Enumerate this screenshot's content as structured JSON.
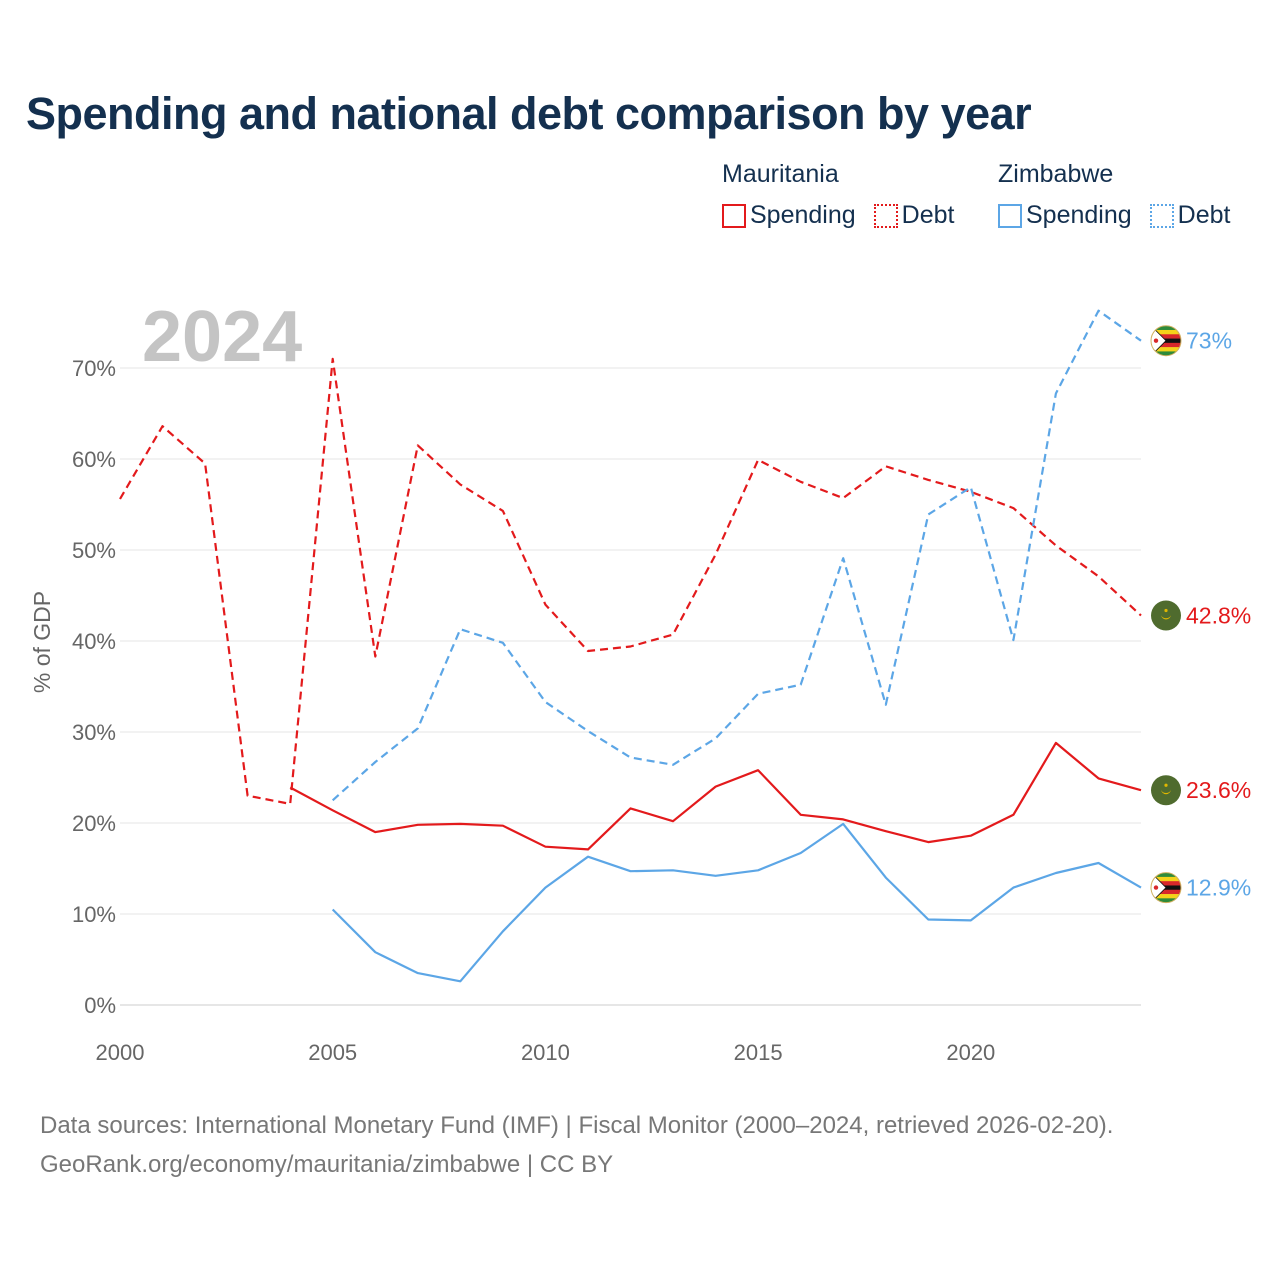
{
  "title": "Spending and national debt comparison by year",
  "legend": {
    "groups": [
      {
        "country": "Mauritania",
        "color": "#e31a1c",
        "items": [
          {
            "label": "Spending",
            "style": "solid"
          },
          {
            "label": "Debt",
            "style": "dotted"
          }
        ]
      },
      {
        "country": "Zimbabwe",
        "color": "#5ca6e6",
        "items": [
          {
            "label": "Spending",
            "style": "solid"
          },
          {
            "label": "Debt",
            "style": "dotted"
          }
        ]
      }
    ]
  },
  "chart_data": {
    "type": "line",
    "year_label": "2024",
    "ylabel": "% of GDP",
    "xlabel": "",
    "xlim": [
      2000,
      2024
    ],
    "ylim": [
      0,
      75
    ],
    "x_ticks": [
      2000,
      2005,
      2010,
      2015,
      2020
    ],
    "y_ticks": [
      0,
      10,
      20,
      30,
      40,
      50,
      60,
      70
    ],
    "y_tick_labels": [
      "0%",
      "10%",
      "20%",
      "30%",
      "40%",
      "50%",
      "60%",
      "70%"
    ],
    "grid": true,
    "series": [
      {
        "name": "Mauritania Debt",
        "country": "Mauritania",
        "kind": "debt",
        "color": "#e31a1c",
        "dashed": true,
        "flag": "mauritania",
        "end_label": "42.8%",
        "x": [
          2000,
          2001,
          2002,
          2003,
          2004,
          2005,
          2006,
          2007,
          2008,
          2009,
          2010,
          2011,
          2012,
          2013,
          2014,
          2015,
          2016,
          2017,
          2018,
          2019,
          2020,
          2021,
          2022,
          2023,
          2024
        ],
        "values": [
          55.6,
          63.6,
          59.5,
          23.0,
          22.1,
          71.0,
          38.3,
          61.5,
          57.2,
          54.3,
          44.0,
          38.9,
          39.4,
          40.7,
          49.5,
          59.9,
          57.5,
          55.7,
          59.2,
          57.7,
          56.4,
          54.6,
          50.5,
          47.1,
          42.8
        ]
      },
      {
        "name": "Zimbabwe Debt",
        "country": "Zimbabwe",
        "kind": "debt",
        "color": "#5ca6e6",
        "dashed": true,
        "flag": "zimbabwe",
        "end_label": "73%",
        "x": [
          2005,
          2006,
          2007,
          2008,
          2009,
          2010,
          2011,
          2012,
          2013,
          2014,
          2015,
          2016,
          2017,
          2018,
          2019,
          2020,
          2021,
          2022,
          2023,
          2024
        ],
        "values": [
          22.5,
          26.7,
          30.4,
          41.3,
          39.8,
          33.3,
          30.1,
          27.2,
          26.4,
          29.3,
          34.2,
          35.2,
          49.1,
          33.0,
          53.9,
          56.9,
          40.1,
          67.2,
          76.3,
          73.0
        ]
      },
      {
        "name": "Mauritania Spending",
        "country": "Mauritania",
        "kind": "spending",
        "color": "#e31a1c",
        "dashed": false,
        "flag": "mauritania",
        "end_label": "23.6%",
        "x": [
          2004,
          2005,
          2006,
          2007,
          2008,
          2009,
          2010,
          2011,
          2012,
          2013,
          2014,
          2015,
          2016,
          2017,
          2018,
          2019,
          2020,
          2021,
          2022,
          2023,
          2024
        ],
        "values": [
          23.9,
          21.4,
          19.0,
          19.8,
          19.9,
          19.7,
          17.4,
          17.1,
          21.6,
          20.2,
          24.0,
          25.8,
          20.9,
          20.4,
          19.1,
          17.9,
          18.6,
          20.9,
          28.8,
          24.9,
          23.6
        ]
      },
      {
        "name": "Zimbabwe Spending",
        "country": "Zimbabwe",
        "kind": "spending",
        "color": "#5ca6e6",
        "dashed": false,
        "flag": "zimbabwe",
        "end_label": "12.9%",
        "x": [
          2005,
          2006,
          2007,
          2008,
          2009,
          2010,
          2011,
          2012,
          2013,
          2014,
          2015,
          2016,
          2017,
          2018,
          2019,
          2020,
          2021,
          2022,
          2023,
          2024
        ],
        "values": [
          10.5,
          5.8,
          3.5,
          2.6,
          8.1,
          12.9,
          16.3,
          14.7,
          14.8,
          14.2,
          14.8,
          16.7,
          19.9,
          14.0,
          9.4,
          9.3,
          12.9,
          14.5,
          15.6,
          12.9
        ]
      }
    ]
  },
  "source": {
    "line1": "Data sources: International Monetary Fund (IMF) | Fiscal Monitor (2000–2024, retrieved 2026-02-20).",
    "line2": "GeoRank.org/economy/mauritania/zimbabwe | CC BY"
  }
}
